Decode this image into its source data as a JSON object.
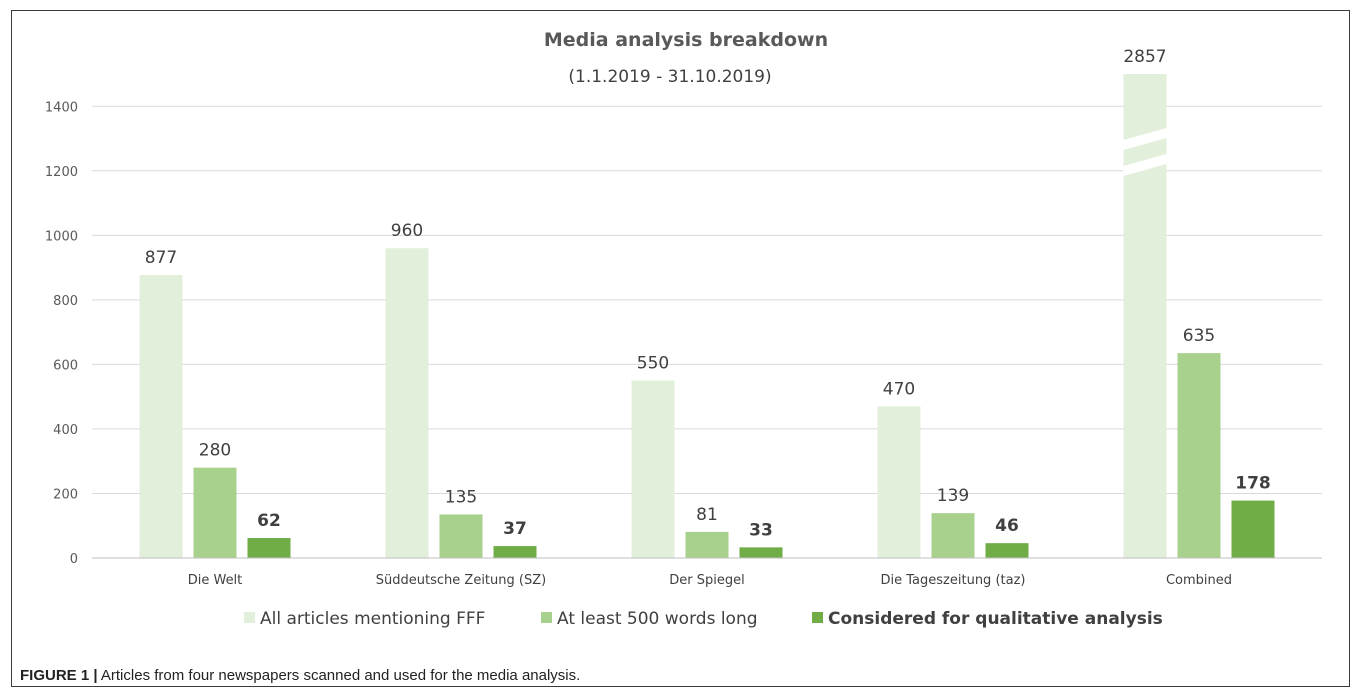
{
  "chart_data": {
    "type": "bar",
    "title": "Media analysis breakdown",
    "subtitle": "(1.1.2019 - 31.10.2019)",
    "categories": [
      "Die Welt",
      "Süddeutsche Zeitung (SZ)",
      "Der Spiegel",
      "Die Tageszeitung (taz)",
      "Combined"
    ],
    "series": [
      {
        "name": "All articles mentioning FFF",
        "values": [
          877,
          960,
          550,
          470,
          2857
        ],
        "color": "#e2efda"
      },
      {
        "name": "At least 500 words long",
        "values": [
          280,
          135,
          81,
          139,
          635
        ],
        "color": "#a9d18e"
      },
      {
        "name": "Considered for qualitative analysis",
        "values": [
          62,
          37,
          33,
          46,
          178
        ],
        "color": "#70ad47"
      }
    ],
    "ylim": [
      0,
      1500
    ],
    "yticks": [
      0,
      200,
      400,
      600,
      800,
      1000,
      1200,
      1400
    ],
    "axis_break": {
      "category": "Combined",
      "series": "All articles mentioning FFF"
    },
    "grid": true,
    "legend": "bottom"
  },
  "caption": {
    "label": "FIGURE 1 |",
    "text": "Articles from four newspapers scanned and used for the media analysis."
  }
}
